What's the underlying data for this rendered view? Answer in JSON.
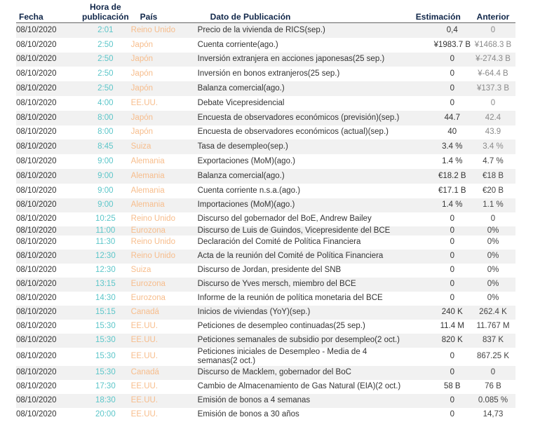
{
  "headers": {
    "date": "Fecha",
    "time": "Hora de publicación",
    "country": "País",
    "desc": "Dato de Publicación",
    "est": "Estimación",
    "prev": "Anterior"
  },
  "colors": {
    "time": "#5cc6c9",
    "country": "#f7bd8c",
    "header": "#0f2548",
    "stripe": "#f1f1f1"
  },
  "rows": [
    {
      "date": "08/10/2020",
      "time": "2:01",
      "country": "Reino Unido",
      "desc": "Precio de la vivienda de RICS(sep.)",
      "est": "0,4",
      "prev": "0"
    },
    {
      "date": "08/10/2020",
      "time": "2:50",
      "country": "Japón",
      "desc": "Cuenta corriente(ago.)",
      "est": "¥1983.7 B",
      "prev": "¥1468.3 B"
    },
    {
      "date": "08/10/2020",
      "time": "2:50",
      "country": "Japón",
      "desc": "Inversión extranjera en acciones japonesas(25 sep.)",
      "est": "0",
      "prev": "¥-274.3 B"
    },
    {
      "date": "08/10/2020",
      "time": "2:50",
      "country": "Japón",
      "desc": "Inversión en bonos extranjeros(25 sep.)",
      "est": "0",
      "prev": "¥-64.4 B"
    },
    {
      "date": "08/10/2020",
      "time": "2:50",
      "country": "Japón",
      "desc": "Balanza comercial(ago.)",
      "est": "0",
      "prev": "¥137.3 B"
    },
    {
      "date": "08/10/2020",
      "time": "4:00",
      "country": "EE.UU.",
      "desc": "Debate Vicepresidencial",
      "est": "0",
      "prev": "0"
    },
    {
      "date": "08/10/2020",
      "time": "8:00",
      "country": "Japón",
      "desc": "Encuesta de observadores económicos (previsión)(sep.)",
      "est": "44.7",
      "prev": "42.4"
    },
    {
      "date": "08/10/2020",
      "time": "8:00",
      "country": "Japón",
      "desc": "Encuesta de observadores económicos (actual)(sep.)",
      "est": "40",
      "prev": "43.9"
    },
    {
      "date": "08/10/2020",
      "time": "8:45",
      "country": "Suiza",
      "desc": "Tasa de desempleo(sep.)",
      "est": "3.4 %",
      "prev": "3.4 %"
    },
    {
      "date": "08/10/2020",
      "time": "9:00",
      "country": "Alemania",
      "desc": "Exportaciones (MoM)(ago.)",
      "est": "1.4 %",
      "prev": "4.7 %"
    },
    {
      "date": "08/10/2020",
      "time": "9:00",
      "country": "Alemania",
      "desc": "Balanza comercial(ago.)",
      "est": "€18.2 B",
      "prev": "€18 B"
    },
    {
      "date": "08/10/2020",
      "time": "9:00",
      "country": "Alemania",
      "desc": "Cuenta corriente n.s.a.(ago.)",
      "est": "€17.1 B",
      "prev": "€20 B"
    },
    {
      "date": "08/10/2020",
      "time": "9:00",
      "country": "Alemania",
      "desc": "Importaciones (MoM)(ago.)",
      "est": "1.4 %",
      "prev": "1.1 %"
    },
    {
      "date": "08/10/2020",
      "time": "10:25",
      "country": "Reino Unido",
      "desc": "Discurso del gobernador del BoE, Andrew Bailey",
      "est": "0",
      "prev": "0"
    },
    {
      "date": "08/10/2020",
      "time": "11:00",
      "country": "Eurozona",
      "desc": "Discurso de Luis de Guindos, Vicepresidente del BCE",
      "est": "0",
      "prev": "0%"
    },
    {
      "date": "08/10/2020",
      "time": "11:30",
      "country": "Reino Unido",
      "desc": "Declaración del Comité de Política Financiera",
      "est": "0",
      "prev": "0%"
    },
    {
      "date": "08/10/2020",
      "time": "12:30",
      "country": "Reino Unido",
      "desc": "Acta de la reunión del Comité de Política Financiera",
      "est": "0",
      "prev": "0%"
    },
    {
      "date": "08/10/2020",
      "time": "12:30",
      "country": "Suiza",
      "desc": "Discurso de Jordan, presidente del SNB",
      "est": "0",
      "prev": "0%"
    },
    {
      "date": "08/10/2020",
      "time": "13:15",
      "country": "Eurozona",
      "desc": "Discurso de Yves mersch, miembro del BCE",
      "est": "0",
      "prev": "0%"
    },
    {
      "date": "08/10/2020",
      "time": "14:30",
      "country": "Eurozona",
      "desc": "Informe de la reunión de política monetaria del BCE",
      "est": "0",
      "prev": "0%"
    },
    {
      "date": "08/10/2020",
      "time": "15:15",
      "country": "Canadá",
      "desc": "Inicios de viviendas (YoY)(sep.)",
      "est": "240 K",
      "prev": "262.4 K"
    },
    {
      "date": "08/10/2020",
      "time": "15:30",
      "country": "EE.UU.",
      "desc": "Peticiones de desempleo continuadas(25 sep.)",
      "est": "11.4 M",
      "prev": "11.767 M"
    },
    {
      "date": "08/10/2020",
      "time": "15:30",
      "country": "EE.UU.",
      "desc": "Peticiones semanales de subsidio por desempleo(2 oct.)",
      "est": "820 K",
      "prev": "837 K"
    },
    {
      "date": "08/10/2020",
      "time": "15:30",
      "country": "EE.UU.",
      "desc": "Peticiones iniciales de Desempleo - Media de 4 semanas(2 oct.)",
      "est": "0",
      "prev": "867.25 K"
    },
    {
      "date": "08/10/2020",
      "time": "15:30",
      "country": "Canadá",
      "desc": "Discurso de Macklem, gobernador del BoC",
      "est": "0",
      "prev": "0"
    },
    {
      "date": "08/10/2020",
      "time": "17:30",
      "country": "EE.UU.",
      "desc": "Cambio de Almacenamiento de Gas Natural (EIA)(2 oct.)",
      "est": "58 B",
      "prev": "76 B"
    },
    {
      "date": "08/10/2020",
      "time": "18:30",
      "country": "EE.UU.",
      "desc": "Emisión de bonos a 4 semanas",
      "est": "0",
      "prev": "0.085 %"
    },
    {
      "date": "08/10/2020",
      "time": "20:00",
      "country": "EE.UU.",
      "desc": "Emisión de bonos a 30 años",
      "est": "0",
      "prev": "14,73"
    }
  ]
}
